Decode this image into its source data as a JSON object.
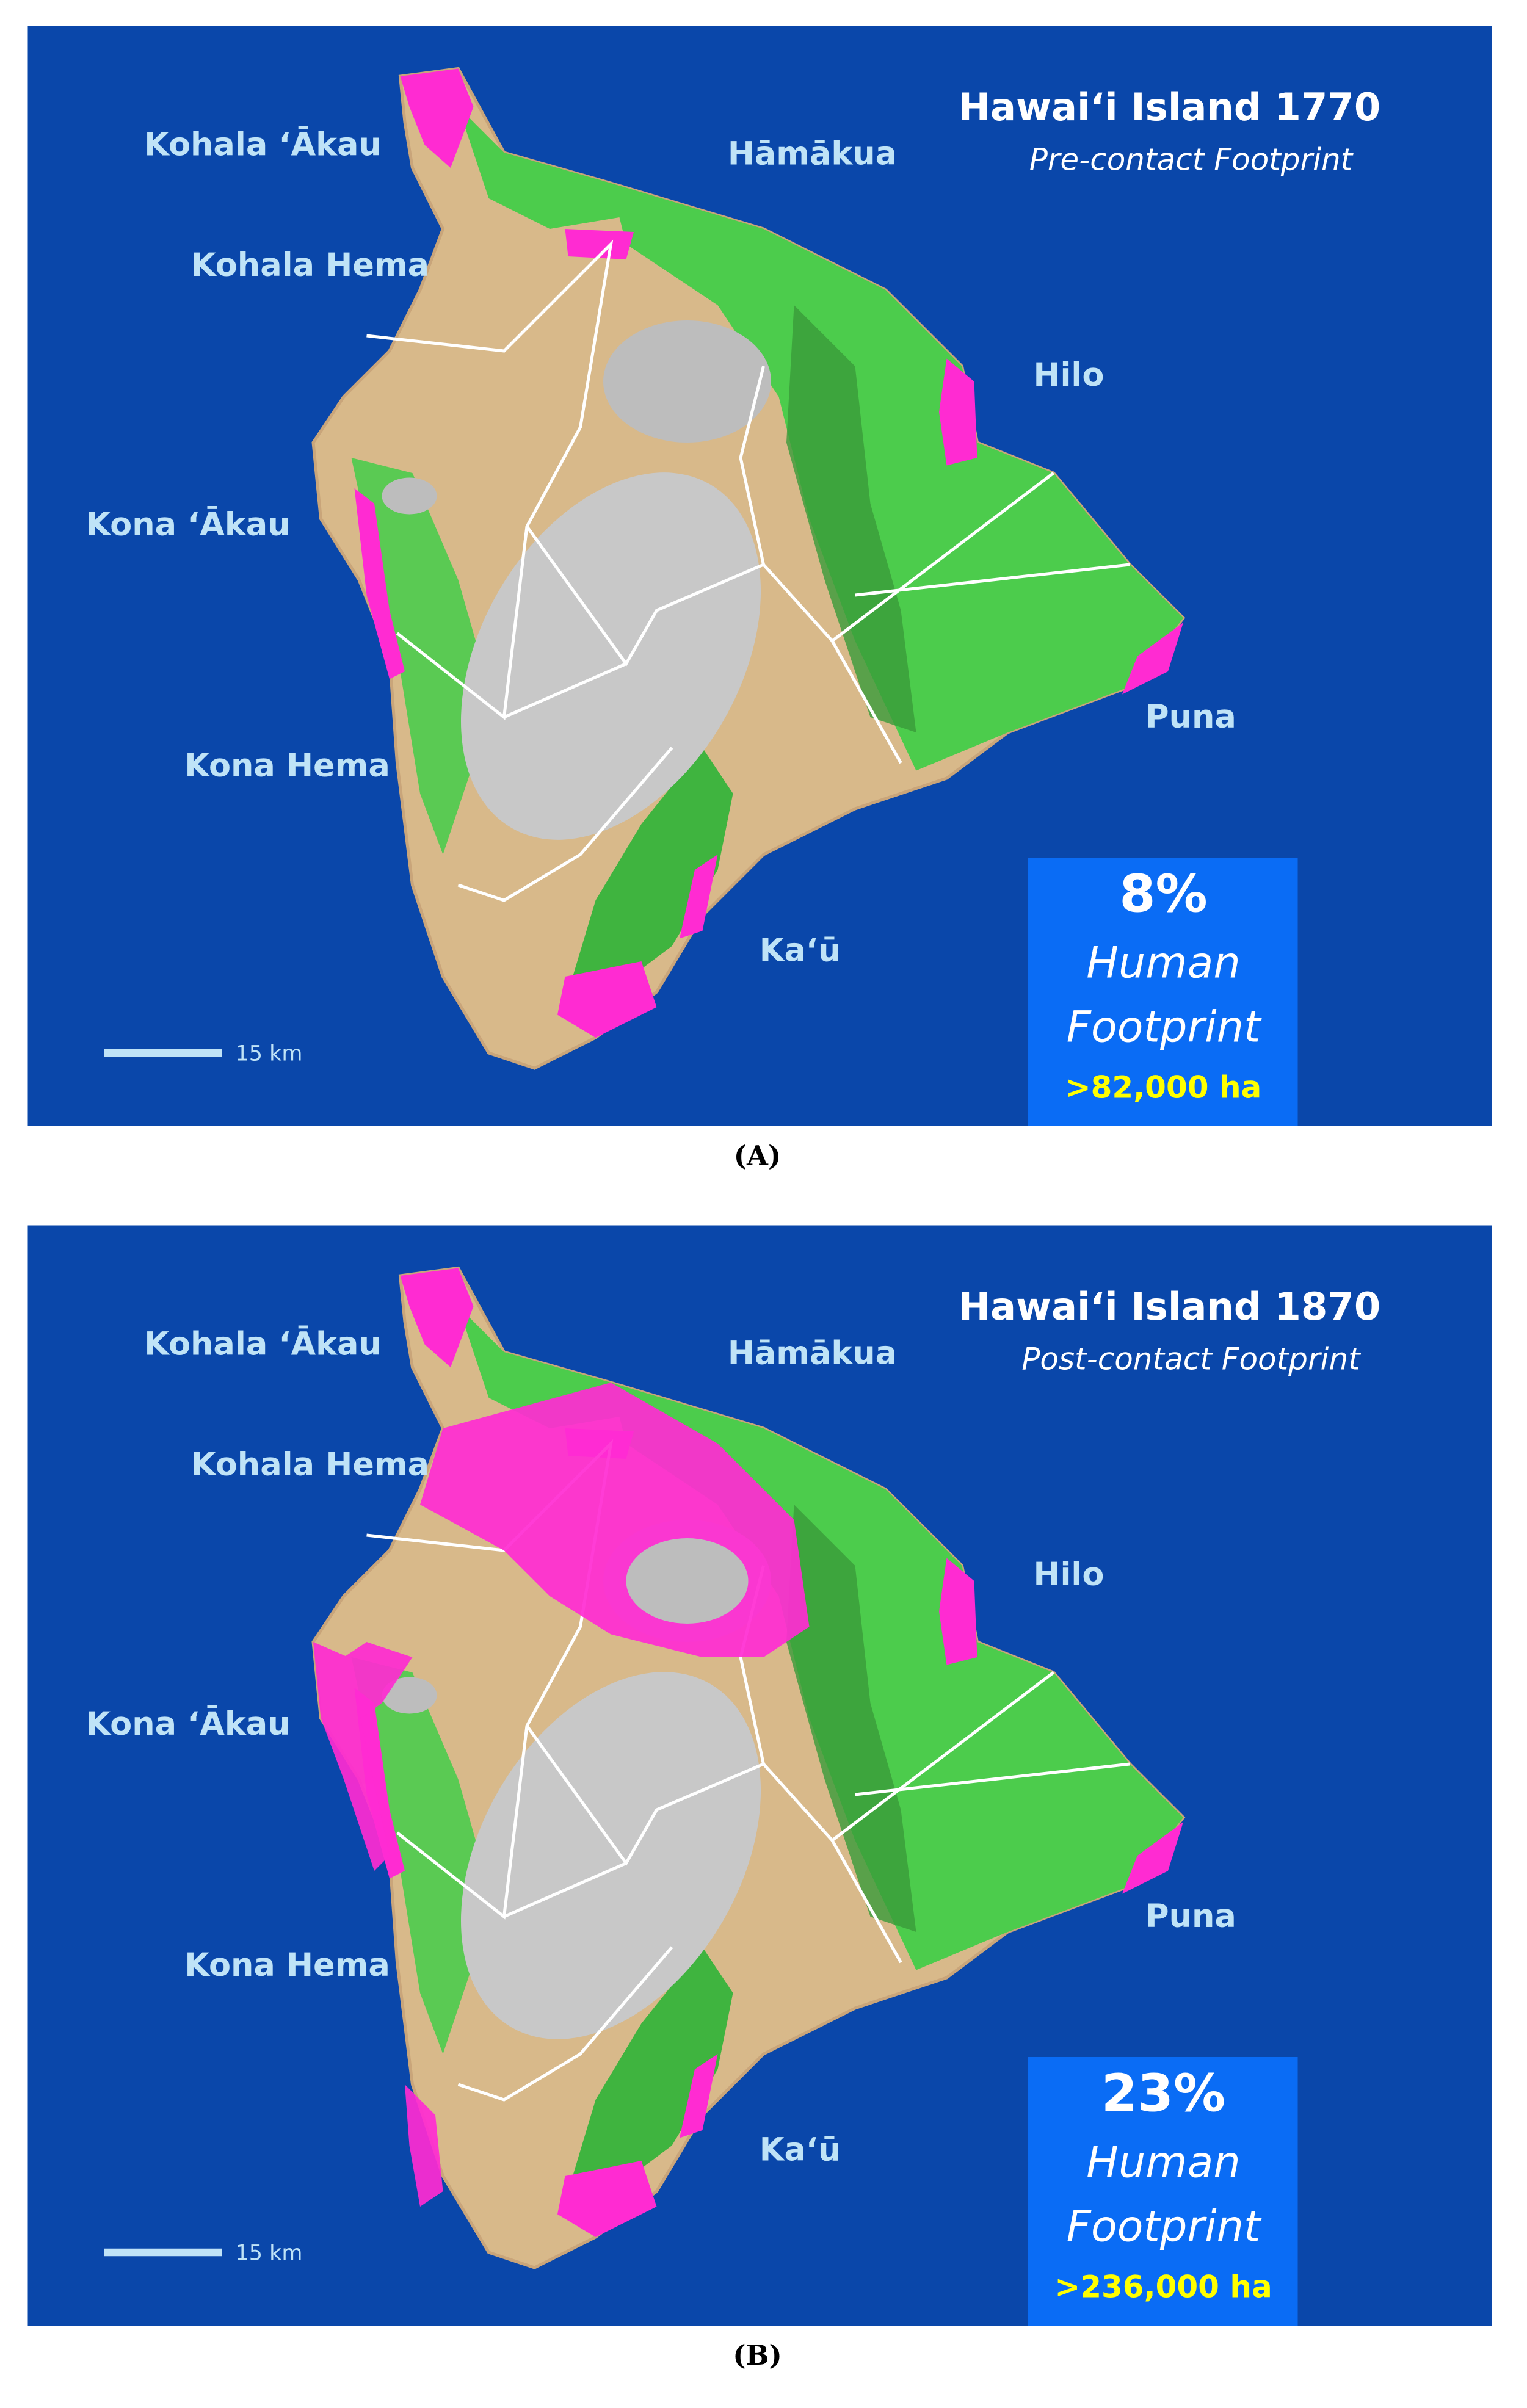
{
  "panels": [
    {
      "title": "Hawaiʻi Island 1770",
      "subtitle": "Pre-contact Footprint",
      "districts": [
        "Kohala ʻĀkau",
        "Hāmākua",
        "Kohala Hema",
        "Hilo",
        "Kona ʻĀkau",
        "Puna",
        "Kona Hema",
        "Kaʻū"
      ],
      "footprint": {
        "percent": "8%",
        "label": [
          "Human",
          "Footprint"
        ],
        "area": ">82,000 ha"
      },
      "scale": "15 km",
      "caption": "(A)"
    },
    {
      "title": "Hawaiʻi Island 1870",
      "subtitle": "Post-contact Footprint",
      "districts": [
        "Kohala ʻĀkau",
        "Hāmākua",
        "Kohala Hema",
        "Hilo",
        "Kona ʻĀkau",
        "Puna",
        "Kona Hema",
        "Kaʻū"
      ],
      "footprint": {
        "percent": "23%",
        "label": [
          "Human",
          "Footprint"
        ],
        "area": ">236,000 ha"
      },
      "scale": "15 km",
      "caption": "(B)"
    }
  ]
}
